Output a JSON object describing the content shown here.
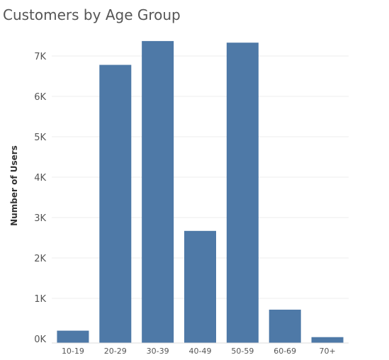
{
  "chart_data": {
    "type": "bar",
    "title": "Customers by Age Group",
    "xlabel": "",
    "ylabel": "Number of Users",
    "categories": [
      "10-19",
      "20-29",
      "30-39",
      "40-49",
      "50-59",
      "60-69",
      "70+"
    ],
    "values": [
      200,
      6780,
      7370,
      2670,
      7330,
      720,
      40
    ],
    "ylim": [
      0,
      7600
    ],
    "yticks": [
      0,
      1000,
      2000,
      3000,
      4000,
      5000,
      6000,
      7000
    ],
    "ytick_labels": [
      "0K",
      "1K",
      "2K",
      "3K",
      "4K",
      "5K",
      "6K",
      "7K"
    ],
    "grid": true,
    "bar_color": "#4e79a7"
  }
}
